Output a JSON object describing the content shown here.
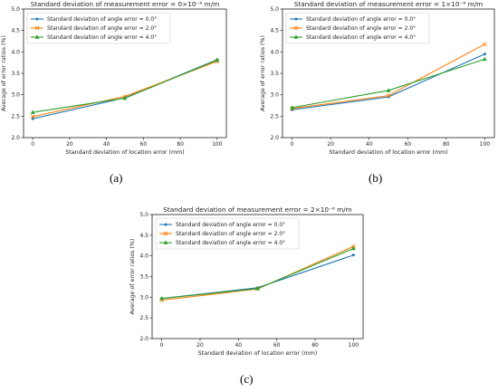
{
  "chart_data": [
    {
      "type": "line",
      "title": "Standard deviation of measurement error = 0×10⁻⁶ m/m",
      "xlabel": "Standard deviation of location error (mm)",
      "ylabel": "Average of error ratios (%)",
      "x": [
        0,
        50,
        100
      ],
      "xticks": [
        0,
        20,
        40,
        60,
        80,
        100
      ],
      "yticks": [
        "2.0",
        "2.5",
        "3.0",
        "3.5",
        "4.0",
        "4.5",
        "5.0"
      ],
      "xlim": [
        -5,
        105
      ],
      "ylim": [
        2.0,
        5.0
      ],
      "legend": "top-left",
      "series": [
        {
          "name": "Standard deviation of angle error = 0.0°",
          "color": "#1f77b4",
          "marker": "dot",
          "values": [
            2.44,
            2.93,
            3.82
          ]
        },
        {
          "name": "Standard deviation of angle error = 2.0°",
          "color": "#ff7f0e",
          "marker": "x",
          "values": [
            2.49,
            2.96,
            3.78
          ]
        },
        {
          "name": "Standard deviation of angle error = 4.0°",
          "color": "#2ca02c",
          "marker": "triangle",
          "values": [
            2.59,
            2.92,
            3.81
          ]
        }
      ],
      "caption": "(a)"
    },
    {
      "type": "line",
      "title": "Standard deviation of measurement error = 1×10⁻⁶ m/m",
      "xlabel": "Standard deviation of location error (mm)",
      "ylabel": "Average of error ratios (%)",
      "x": [
        0,
        50,
        100
      ],
      "xticks": [
        0,
        20,
        40,
        60,
        80,
        100
      ],
      "yticks": [
        "2.0",
        "2.5",
        "3.0",
        "3.5",
        "4.0",
        "4.5",
        "5.0"
      ],
      "xlim": [
        -5,
        105
      ],
      "ylim": [
        2.0,
        5.0
      ],
      "legend": "top-left",
      "series": [
        {
          "name": "Standard deviation of angle error = 0.0°",
          "color": "#1f77b4",
          "marker": "dot",
          "values": [
            2.65,
            2.95,
            3.95
          ]
        },
        {
          "name": "Standard deviation of angle error = 2.0°",
          "color": "#ff7f0e",
          "marker": "x",
          "values": [
            2.68,
            2.98,
            4.18
          ]
        },
        {
          "name": "Standard deviation of angle error = 4.0°",
          "color": "#2ca02c",
          "marker": "triangle",
          "values": [
            2.7,
            3.1,
            3.83
          ]
        }
      ],
      "caption": "(b)"
    },
    {
      "type": "line",
      "title": "Standard deviation of measurement error = 2×10⁻⁶ m/m",
      "xlabel": "Standard deviation of location error (mm)",
      "ylabel": "Average of error ratios (%)",
      "x": [
        0,
        50,
        100
      ],
      "xticks": [
        0,
        20,
        40,
        60,
        80,
        100
      ],
      "yticks": [
        "2.0",
        "2.5",
        "3.0",
        "3.5",
        "4.0",
        "4.5",
        "5.0"
      ],
      "xlim": [
        -5,
        105
      ],
      "ylim": [
        2.0,
        5.0
      ],
      "legend": "top-left",
      "series": [
        {
          "name": "Standard deviation of angle error = 0.0°",
          "color": "#1f77b4",
          "marker": "dot",
          "values": [
            2.97,
            3.23,
            4.02
          ]
        },
        {
          "name": "Standard deviation of angle error = 2.0°",
          "color": "#ff7f0e",
          "marker": "x",
          "values": [
            2.93,
            3.2,
            4.23
          ]
        },
        {
          "name": "Standard deviation of angle error = 4.0°",
          "color": "#2ca02c",
          "marker": "triangle",
          "values": [
            2.97,
            3.21,
            4.18
          ]
        }
      ],
      "caption": "(c)"
    }
  ]
}
